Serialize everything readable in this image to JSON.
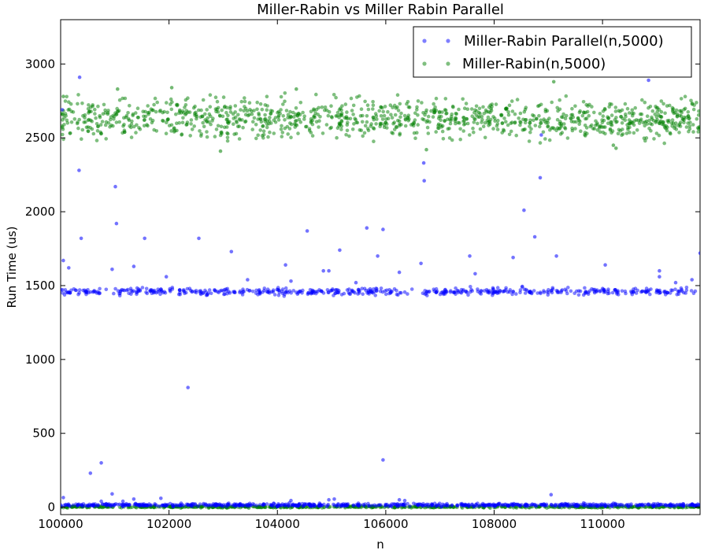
{
  "chart_data": {
    "type": "scatter",
    "title": "Miller-Rabin vs Miller Rabin Parallel",
    "xlabel": "n",
    "ylabel": "Run Time (us)",
    "xlim": [
      100000,
      111800
    ],
    "ylim": [
      -50,
      3300
    ],
    "xticks": [
      100000,
      102000,
      104000,
      106000,
      108000,
      110000
    ],
    "yticks": [
      0,
      500,
      1000,
      1500,
      2000,
      2500,
      3000
    ],
    "grid": false,
    "legend_position": "top-right",
    "series": [
      {
        "name": "Miller-Rabin Parallel(n,5000)",
        "color": "#0000ff",
        "bands": [
          {
            "center": 1460,
            "spread": 12,
            "count": 560
          },
          {
            "center": 15,
            "spread": 5,
            "count": 700
          }
        ],
        "outliers": [
          [
            100050,
            1670
          ],
          [
            100150,
            1620
          ],
          [
            100030,
            2690
          ],
          [
            100350,
            2910
          ],
          [
            100340,
            2280
          ],
          [
            100380,
            1820
          ],
          [
            101010,
            2170
          ],
          [
            101030,
            1920
          ],
          [
            100950,
            1610
          ],
          [
            101350,
            1630
          ],
          [
            101550,
            1820
          ],
          [
            102550,
            1820
          ],
          [
            103150,
            1730
          ],
          [
            103450,
            1540
          ],
          [
            104150,
            1640
          ],
          [
            104250,
            1530
          ],
          [
            104550,
            1870
          ],
          [
            104850,
            1600
          ],
          [
            104950,
            1600
          ],
          [
            105150,
            1740
          ],
          [
            105450,
            1520
          ],
          [
            105650,
            1890
          ],
          [
            105850,
            1700
          ],
          [
            105950,
            1880
          ],
          [
            106250,
            1590
          ],
          [
            106650,
            1650
          ],
          [
            106700,
            2330
          ],
          [
            106710,
            2210
          ],
          [
            107550,
            1700
          ],
          [
            107650,
            1580
          ],
          [
            108350,
            1690
          ],
          [
            108550,
            2010
          ],
          [
            108750,
            1830
          ],
          [
            108850,
            2230
          ],
          [
            108870,
            2520
          ],
          [
            109150,
            1700
          ],
          [
            110050,
            1640
          ],
          [
            110850,
            2890
          ],
          [
            111050,
            1600
          ],
          [
            111050,
            1560
          ],
          [
            111350,
            1520
          ],
          [
            111800,
            1720
          ],
          [
            111650,
            1540
          ],
          [
            102350,
            810
          ],
          [
            101950,
            1560
          ],
          [
            100550,
            230
          ],
          [
            100750,
            300
          ],
          [
            105950,
            320
          ],
          [
            100050,
            65
          ],
          [
            100950,
            90
          ],
          [
            101350,
            55
          ],
          [
            101850,
            60
          ],
          [
            104250,
            45
          ],
          [
            104950,
            50
          ],
          [
            105050,
            55
          ],
          [
            106250,
            50
          ],
          [
            106350,
            45
          ],
          [
            109050,
            85
          ],
          [
            100750,
            40
          ],
          [
            101150,
            40
          ]
        ]
      },
      {
        "name": "Miller-Rabin(n,5000)",
        "color": "#008000",
        "bands": [
          {
            "center": 2630,
            "spread": 65,
            "count": 1150
          },
          {
            "center": 2,
            "spread": 3,
            "count": 700
          }
        ],
        "outliers": [
          [
            110250,
            2430
          ],
          [
            110200,
            2450
          ],
          [
            102950,
            2410
          ],
          [
            106750,
            2420
          ],
          [
            100050,
            2780
          ],
          [
            109100,
            2880
          ],
          [
            101050,
            2830
          ],
          [
            102050,
            2840
          ],
          [
            104350,
            2830
          ]
        ]
      }
    ]
  }
}
